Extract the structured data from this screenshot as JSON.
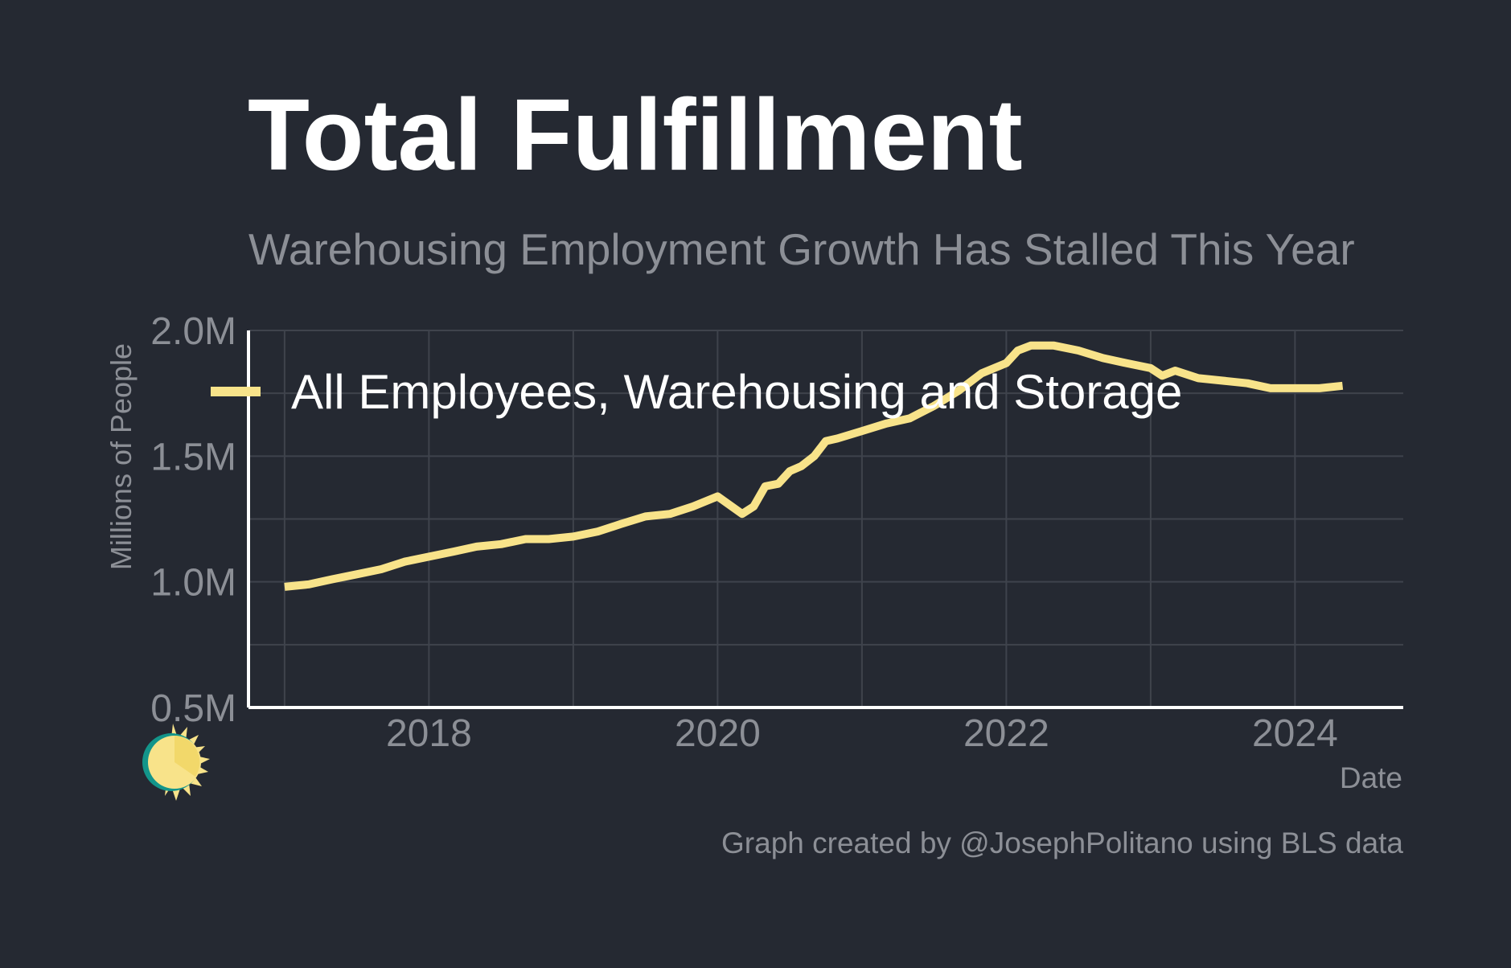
{
  "header": {
    "title": "Total Fulfillment",
    "subtitle": "Warehousing Employment Growth Has Stalled This Year"
  },
  "caption": "Graph created by @JosephPolitano using BLS data",
  "colors": {
    "background": "#252932",
    "line": "#f8e38a",
    "grid": "#3f434c",
    "axis": "#ffffff",
    "muted_text": "#8c8f96"
  },
  "chart_data": {
    "type": "line",
    "xlabel": "Date",
    "ylabel": "Millions of People",
    "xlim": [
      2016.75,
      2024.75
    ],
    "ylim": [
      0.5,
      2.0
    ],
    "x_ticks": [
      {
        "value": 2018,
        "label": "2018"
      },
      {
        "value": 2020,
        "label": "2020"
      },
      {
        "value": 2022,
        "label": "2022"
      },
      {
        "value": 2024,
        "label": "2024"
      }
    ],
    "y_ticks": [
      {
        "value": 0.5,
        "label": "0.5M"
      },
      {
        "value": 1.0,
        "label": "1.0M"
      },
      {
        "value": 1.5,
        "label": "1.5M"
      },
      {
        "value": 2.0,
        "label": "2.0M"
      }
    ],
    "grid": true,
    "legend_position": "top-left",
    "series": [
      {
        "name": "All Employees, Warehousing and Storage",
        "x": [
          2017.0,
          2017.17,
          2017.33,
          2017.5,
          2017.67,
          2017.83,
          2018.0,
          2018.17,
          2018.33,
          2018.5,
          2018.67,
          2018.83,
          2019.0,
          2019.17,
          2019.33,
          2019.5,
          2019.67,
          2019.83,
          2020.0,
          2020.17,
          2020.25,
          2020.33,
          2020.42,
          2020.5,
          2020.58,
          2020.67,
          2020.75,
          2020.83,
          2021.0,
          2021.17,
          2021.33,
          2021.5,
          2021.67,
          2021.83,
          2022.0,
          2022.08,
          2022.17,
          2022.33,
          2022.5,
          2022.67,
          2022.83,
          2023.0,
          2023.08,
          2023.17,
          2023.33,
          2023.5,
          2023.67,
          2023.83,
          2024.0,
          2024.17,
          2024.33
        ],
        "y": [
          0.98,
          0.99,
          1.01,
          1.03,
          1.05,
          1.08,
          1.1,
          1.12,
          1.14,
          1.15,
          1.17,
          1.17,
          1.18,
          1.2,
          1.23,
          1.26,
          1.27,
          1.3,
          1.34,
          1.27,
          1.3,
          1.38,
          1.39,
          1.44,
          1.46,
          1.5,
          1.56,
          1.57,
          1.6,
          1.63,
          1.65,
          1.7,
          1.76,
          1.83,
          1.87,
          1.92,
          1.94,
          1.94,
          1.92,
          1.89,
          1.87,
          1.85,
          1.82,
          1.84,
          1.81,
          1.8,
          1.79,
          1.77,
          1.77,
          1.77,
          1.78
        ]
      }
    ]
  }
}
